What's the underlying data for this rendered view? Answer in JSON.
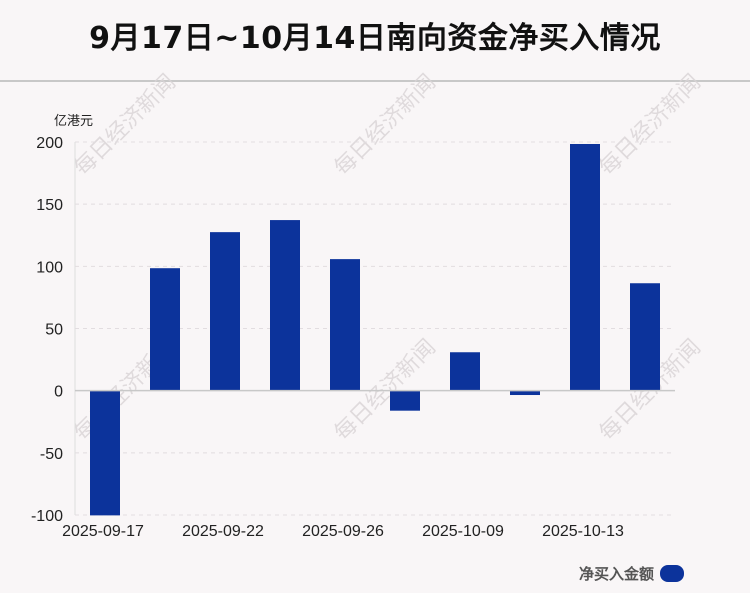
{
  "title": "9月17日~10月14日南向资金净买入情况",
  "watermark": "每日经济新闻",
  "chart_data": {
    "type": "bar",
    "title": "9月17日~10月14日南向资金净买入情况",
    "ylabel": "亿港元",
    "xlabel": "",
    "categories": [
      "2025-09-17",
      "",
      "2025-09-22",
      "",
      "2025-09-26",
      "",
      "2025-10-09",
      "",
      "2025-10-13",
      ""
    ],
    "series": [
      {
        "name": "净买入金额",
        "color": "#0c339b",
        "values": [
          -100.3,
          98.5,
          127.5,
          137.2,
          105.8,
          -16.1,
          30.9,
          -3.5,
          198.4,
          86.4
        ]
      }
    ],
    "ylim": [
      -100,
      200
    ],
    "yticks": [
      200,
      150,
      100,
      50,
      0,
      -50,
      -100
    ],
    "grid": true,
    "legend": "bottom-right"
  }
}
